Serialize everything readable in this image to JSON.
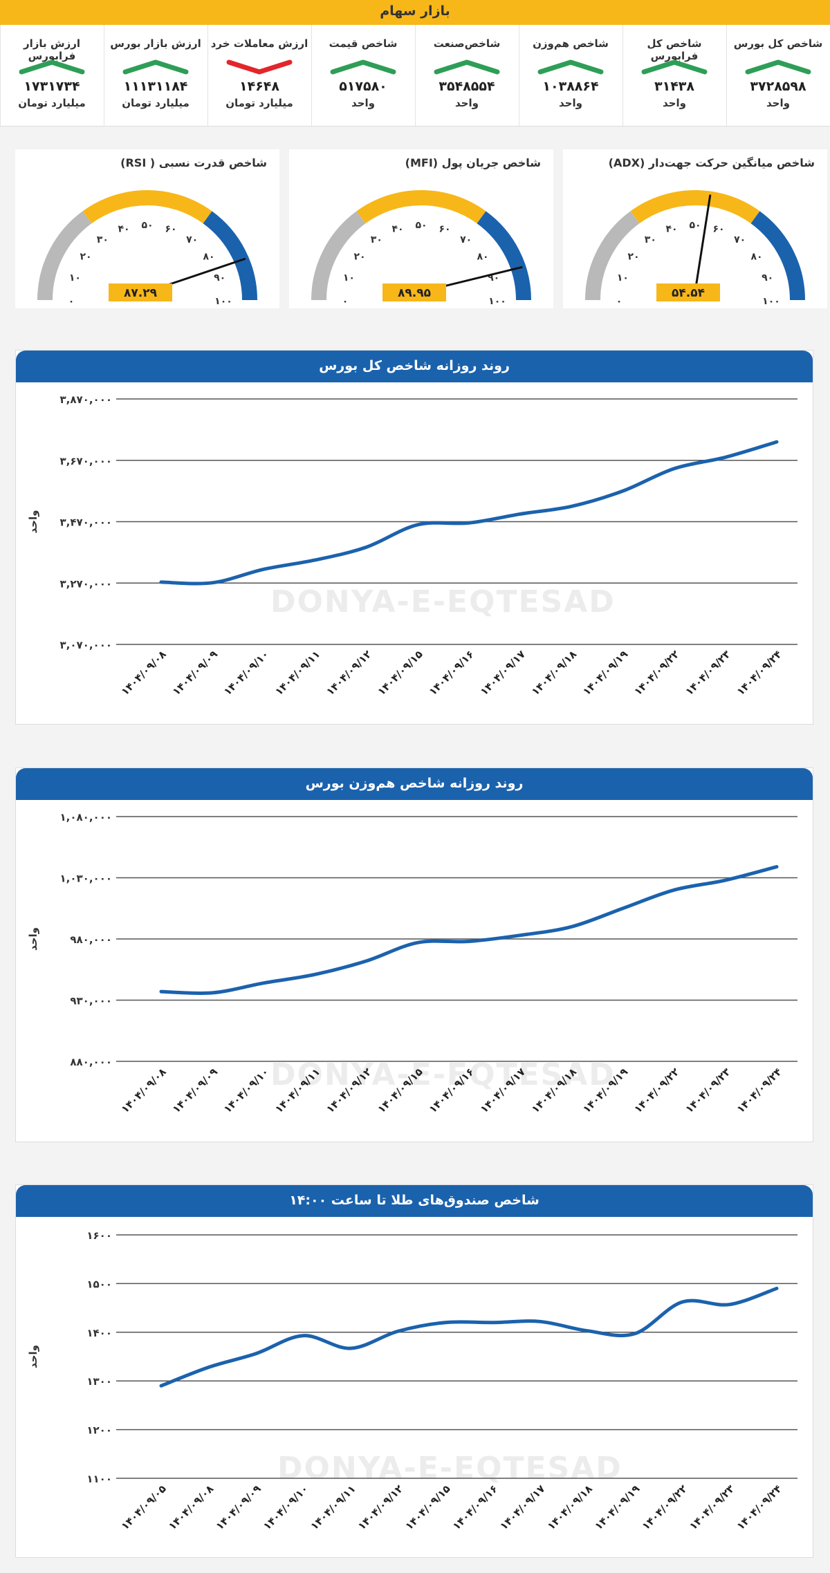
{
  "header": {
    "title": "بازار سهام"
  },
  "stats": [
    {
      "label": "شاخص کل بورس",
      "value": "۳۷۲۸۵۹۸",
      "unit": "واحد",
      "trend": "up"
    },
    {
      "label": "شاخص کل فرابورس",
      "value": "۳۱۴۳۸",
      "unit": "واحد",
      "trend": "up"
    },
    {
      "label": "شاخص هم‌وزن",
      "value": "۱۰۳۸۸۶۴",
      "unit": "واحد",
      "trend": "up"
    },
    {
      "label": "شاخص‌صنعت",
      "value": "۳۵۴۸۵۵۴",
      "unit": "واحد",
      "trend": "up"
    },
    {
      "label": "شاخص قیمت",
      "value": "۵۱۷۵۸۰",
      "unit": "واحد",
      "trend": "up"
    },
    {
      "label": "ارزش معاملات خرد",
      "value": "۱۴۶۴۸",
      "unit": "میلیارد تومان",
      "trend": "down"
    },
    {
      "label": "ارزش بازار بورس",
      "value": "۱۱۱۳۱۱۸۴",
      "unit": "میلیارد تومان",
      "trend": "up"
    },
    {
      "label": "ارزش بازار فرابورس",
      "value": "۱۷۳۱۷۳۴",
      "unit": "میلیارد تومان",
      "trend": "up"
    }
  ],
  "colors": {
    "accent": "#f7b719",
    "blue": "#1b62ad",
    "up": "#2e9e57",
    "down": "#e2262b",
    "gray": "#b9b9b9"
  },
  "gauges": [
    {
      "title": "شاخص میانگین حرکت جهت‌دار (ADX)",
      "value": 54.54,
      "value_label": "۵۴.۵۴"
    },
    {
      "title": "شاخص جریان پول (MFI)",
      "value": 89.95,
      "value_label": "۸۹.۹۵"
    },
    {
      "title": "شاخص قدرت نسبی ( RSI)",
      "value": 87.29,
      "value_label": "۸۷.۲۹"
    }
  ],
  "gauge_ticks": [
    "۰",
    "۱۰",
    "۲۰",
    "۳۰",
    "۴۰",
    "۵۰",
    "۶۰",
    "۷۰",
    "۸۰",
    "۹۰",
    "۱۰۰"
  ],
  "watermark": {
    "text": "DONYA-E-EQTESAD"
  },
  "chart_data": [
    {
      "type": "line",
      "title": "روند روزانه شاخص کل بورس",
      "ylabel": "واحد",
      "ylim": [
        3070000,
        3870000
      ],
      "ytick_labels": [
        "۳,۰۷۰,۰۰۰",
        "۳,۲۷۰,۰۰۰",
        "۳,۴۷۰,۰۰۰",
        "۳,۶۷۰,۰۰۰",
        "۳,۸۷۰,۰۰۰"
      ],
      "categories": [
        "۱۴۰۴/۰۹/۰۸",
        "۱۴۰۴/۰۹/۰۹",
        "۱۴۰۴/۰۹/۱۰",
        "۱۴۰۴/۰۹/۱۱",
        "۱۴۰۴/۰۹/۱۲",
        "۱۴۰۴/۰۹/۱۵",
        "۱۴۰۴/۰۹/۱۶",
        "۱۴۰۴/۰۹/۱۷",
        "۱۴۰۴/۰۹/۱۸",
        "۱۴۰۴/۰۹/۱۹",
        "۱۴۰۴/۰۹/۲۲",
        "۱۴۰۴/۰۹/۲۳",
        "۱۴۰۴/۰۹/۲۴"
      ],
      "values": [
        3273000,
        3271000,
        3315000,
        3345000,
        3387000,
        3460000,
        3466000,
        3495000,
        3520000,
        3570000,
        3643000,
        3680000,
        3730000
      ]
    },
    {
      "type": "line",
      "title": "روند روزانه شاخص هم‌وزن بورس",
      "ylabel": "واحد",
      "ylim": [
        880000,
        1080000
      ],
      "ytick_labels": [
        "۸۸۰,۰۰۰",
        "۹۳۰,۰۰۰",
        "۹۸۰,۰۰۰",
        "۱,۰۳۰,۰۰۰",
        "۱,۰۸۰,۰۰۰"
      ],
      "categories": [
        "۱۴۰۴/۰۹/۰۸",
        "۱۴۰۴/۰۹/۰۹",
        "۱۴۰۴/۰۹/۱۰",
        "۱۴۰۴/۰۹/۱۱",
        "۱۴۰۴/۰۹/۱۲",
        "۱۴۰۴/۰۹/۱۵",
        "۱۴۰۴/۰۹/۱۶",
        "۱۴۰۴/۰۹/۱۷",
        "۱۴۰۴/۰۹/۱۸",
        "۱۴۰۴/۰۹/۱۹",
        "۱۴۰۴/۰۹/۲۲",
        "۱۴۰۴/۰۹/۲۳",
        "۱۴۰۴/۰۹/۲۴"
      ],
      "values": [
        937000,
        936000,
        944000,
        951000,
        962000,
        977000,
        978000,
        983000,
        990000,
        1005000,
        1020000,
        1028000,
        1039000
      ]
    },
    {
      "type": "line",
      "title": "شاخص صندوق‌های طلا تا ساعت ۱۴:۰۰",
      "ylabel": "واحد",
      "ylim": [
        1100,
        1600
      ],
      "ytick_labels": [
        "۱۱۰۰",
        "۱۲۰۰",
        "۱۳۰۰",
        "۱۴۰۰",
        "۱۵۰۰",
        "۱۶۰۰"
      ],
      "categories": [
        "۱۴۰۴/۰۹/۰۵",
        "۱۴۰۴/۰۹/۰۸",
        "۱۴۰۴/۰۹/۰۹",
        "۱۴۰۴/۰۹/۱۰",
        "۱۴۰۴/۰۹/۱۱",
        "۱۴۰۴/۰۹/۱۲",
        "۱۴۰۴/۰۹/۱۵",
        "۱۴۰۴/۰۹/۱۶",
        "۱۴۰۴/۰۹/۱۷",
        "۱۴۰۴/۰۹/۱۸",
        "۱۴۰۴/۰۹/۱۹",
        "۱۴۰۴/۰۹/۲۲",
        "۱۴۰۴/۰۹/۲۳",
        "۱۴۰۴/۰۹/۲۴"
      ],
      "values": [
        1290,
        1328,
        1356,
        1393,
        1367,
        1402,
        1420,
        1420,
        1422,
        1403,
        1397,
        1462,
        1457,
        1490
      ]
    }
  ]
}
